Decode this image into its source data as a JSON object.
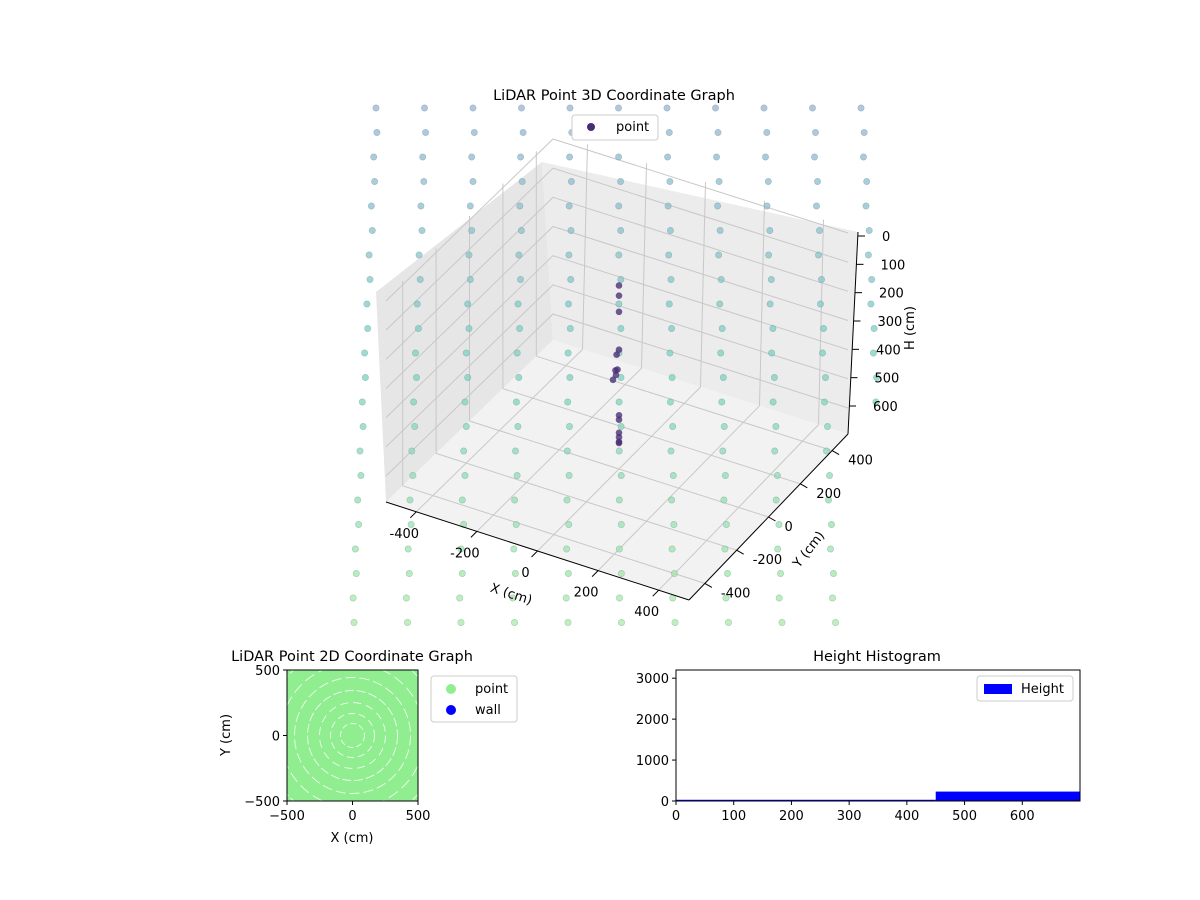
{
  "colors": {
    "point_3d": "#482d73",
    "point_2d": "#90ee90",
    "wall": "#0000ff",
    "height_bar": "#0000ff"
  },
  "chart_data": [
    {
      "type": "scatter",
      "title": "LiDAR Point 3D Coordinate Graph",
      "xlabel": "X (cm)",
      "ylabel": "Y (cm)",
      "zlabel": "H (cm)",
      "x_ticks": [
        "-400",
        "-200",
        "0",
        "200",
        "400"
      ],
      "y_ticks": [
        "-400",
        "-200",
        "0",
        "200",
        "400"
      ],
      "z_ticks": [
        "0",
        "100",
        "200",
        "300",
        "400",
        "500",
        "600"
      ],
      "xlim": [
        -500,
        500
      ],
      "ylim": [
        -500,
        500
      ],
      "zlim": [
        0,
        600
      ],
      "z_inverted": true,
      "legend": {
        "placement": "top-center",
        "entries": [
          "point"
        ]
      },
      "series": [
        {
          "name": "point",
          "points": [
            {
              "x": 0,
              "y": 0,
              "z": 600
            },
            {
              "x": 0,
              "y": 0,
              "z": 596
            },
            {
              "x": 0,
              "y": 0,
              "z": 580
            },
            {
              "x": 0,
              "y": 0,
              "z": 565
            },
            {
              "x": 0,
              "y": 0,
              "z": 520
            },
            {
              "x": 0,
              "y": 0,
              "z": 505
            },
            {
              "x": -20,
              "y": 0,
              "z": 390
            },
            {
              "x": -10,
              "y": 0,
              "z": 370
            },
            {
              "x": -12,
              "y": 0,
              "z": 355
            },
            {
              "x": -5,
              "y": 0,
              "z": 350
            },
            {
              "x": -8,
              "y": 0,
              "z": 300
            },
            {
              "x": 0,
              "y": 0,
              "z": 280
            },
            {
              "x": 0,
              "y": 0,
              "z": 150
            },
            {
              "x": 0,
              "y": 0,
              "z": 95
            },
            {
              "x": 0,
              "y": 0,
              "z": 60
            }
          ]
        }
      ]
    },
    {
      "type": "scatter",
      "title": "LiDAR Point 2D Coordinate Graph",
      "xlabel": "X (cm)",
      "ylabel": "Y (cm)",
      "xlim": [
        -500,
        500
      ],
      "ylim": [
        -500,
        500
      ],
      "x_ticks": [
        "−500",
        "0",
        "500"
      ],
      "y_ticks": [
        "−500",
        "0",
        "500"
      ],
      "legend": {
        "placement": "outside-right",
        "entries": [
          "point",
          "wall"
        ]
      },
      "series": [
        {
          "name": "point"
        },
        {
          "name": "wall"
        }
      ]
    },
    {
      "type": "bar",
      "title": "Height Histogram",
      "xlabel": "",
      "ylabel": "",
      "xlim": [
        0,
        700
      ],
      "ylim": [
        0,
        3200
      ],
      "x_ticks": [
        0,
        100,
        200,
        300,
        400,
        500,
        600
      ],
      "y_ticks": [
        0,
        1000,
        2000,
        3000
      ],
      "legend": {
        "placement": "top-right",
        "entries": [
          "Height"
        ]
      },
      "series": [
        {
          "name": "Height",
          "bins": [
            {
              "start": 0,
              "end": 450,
              "count": 30
            },
            {
              "start": 450,
              "end": 700,
              "count": 230
            }
          ]
        }
      ]
    }
  ]
}
